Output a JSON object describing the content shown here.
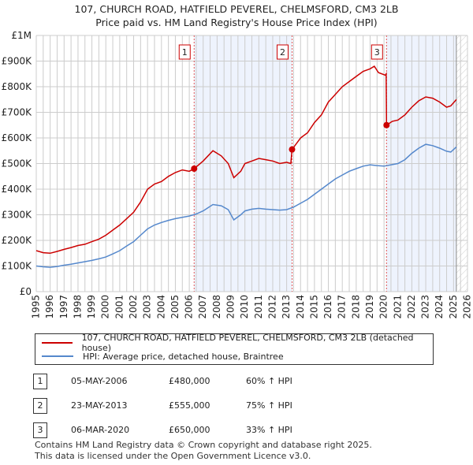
{
  "chart_data": {
    "type": "line",
    "title": "107, CHURCH ROAD, HATFIELD PEVEREL, CHELMSFORD, CM3 2LB",
    "subtitle": "Price paid vs. HM Land Registry's House Price Index (HPI)",
    "xlim": [
      1995,
      2026
    ],
    "ylim": [
      0,
      1000000
    ],
    "x_ticks": [
      "1995",
      "1996",
      "1997",
      "1998",
      "1999",
      "2000",
      "2001",
      "2002",
      "2003",
      "2004",
      "2005",
      "2006",
      "2007",
      "2008",
      "2009",
      "2010",
      "2011",
      "2012",
      "2013",
      "2014",
      "2015",
      "2016",
      "2017",
      "2018",
      "2019",
      "2020",
      "2021",
      "2022",
      "2023",
      "2024",
      "2025",
      "2026"
    ],
    "y_ticks": [
      {
        "v": 0,
        "label": "£0"
      },
      {
        "v": 100000,
        "label": "£100K"
      },
      {
        "v": 200000,
        "label": "£200K"
      },
      {
        "v": 300000,
        "label": "£300K"
      },
      {
        "v": 400000,
        "label": "£400K"
      },
      {
        "v": 500000,
        "label": "£500K"
      },
      {
        "v": 600000,
        "label": "£600K"
      },
      {
        "v": 700000,
        "label": "£700K"
      },
      {
        "v": 800000,
        "label": "£800K"
      },
      {
        "v": 900000,
        "label": "£900K"
      },
      {
        "v": 1000000,
        "label": "£1M"
      }
    ],
    "grid": true,
    "shaded_periods": [
      [
        2006.35,
        2013.39
      ],
      [
        2020.18,
        2025.2
      ]
    ],
    "forecast_hatch_from": 2025.2,
    "series": [
      {
        "name": "107, CHURCH ROAD, HATFIELD PEVEREL, CHELMSFORD, CM3 2LB (detached house)",
        "color": "#cc0000",
        "x": [
          1995,
          1995.5,
          1996,
          1996.5,
          1997,
          1997.5,
          1998,
          1998.5,
          1999,
          1999.5,
          2000,
          2000.5,
          2001,
          2001.5,
          2002,
          2002.5,
          2003,
          2003.5,
          2004,
          2004.5,
          2005,
          2005.5,
          2006,
          2006.35,
          2007,
          2007.7,
          2008.3,
          2008.8,
          2009.2,
          2009.7,
          2010,
          2010.5,
          2011,
          2011.5,
          2012,
          2012.5,
          2013,
          2013.3,
          2013.39,
          2014,
          2014.5,
          2015,
          2015.5,
          2016,
          2016.5,
          2017,
          2017.5,
          2018,
          2018.5,
          2019,
          2019.3,
          2019.6,
          2020.1,
          2020.15,
          2020.18,
          2020.6,
          2021,
          2021.5,
          2022,
          2022.5,
          2023,
          2023.5,
          2024,
          2024.5,
          2024.8,
          2025.2
        ],
        "y": [
          160000,
          152000,
          150000,
          157000,
          165000,
          172000,
          180000,
          185000,
          195000,
          205000,
          220000,
          240000,
          260000,
          285000,
          310000,
          350000,
          400000,
          420000,
          430000,
          450000,
          465000,
          475000,
          470000,
          480000,
          510000,
          550000,
          530000,
          500000,
          445000,
          470000,
          500000,
          510000,
          520000,
          515000,
          510000,
          500000,
          505000,
          500000,
          555000,
          600000,
          620000,
          660000,
          690000,
          740000,
          770000,
          800000,
          820000,
          840000,
          860000,
          870000,
          880000,
          855000,
          845000,
          850000,
          650000,
          665000,
          670000,
          690000,
          720000,
          745000,
          760000,
          755000,
          740000,
          720000,
          725000,
          750000
        ]
      },
      {
        "name": "HPI: Average price, detached house, Braintree",
        "color": "#5588cc",
        "x": [
          1995,
          1995.5,
          1996,
          1996.5,
          1997,
          1997.5,
          1998,
          1998.5,
          1999,
          1999.5,
          2000,
          2000.5,
          2001,
          2001.5,
          2002,
          2002.5,
          2003,
          2003.5,
          2004,
          2004.5,
          2005,
          2005.5,
          2006,
          2006.5,
          2007,
          2007.7,
          2008.3,
          2008.8,
          2009.2,
          2009.7,
          2010,
          2010.5,
          2011,
          2011.5,
          2012,
          2012.5,
          2013,
          2013.5,
          2014,
          2014.5,
          2015,
          2015.5,
          2016,
          2016.5,
          2017,
          2017.5,
          2018,
          2018.5,
          2019,
          2019.5,
          2020,
          2020.5,
          2021,
          2021.5,
          2022,
          2022.5,
          2023,
          2023.5,
          2024,
          2024.5,
          2024.8,
          2025.2
        ],
        "y": [
          100000,
          97000,
          95000,
          98000,
          103000,
          107000,
          112000,
          117000,
          122000,
          128000,
          135000,
          147000,
          160000,
          178000,
          195000,
          220000,
          245000,
          260000,
          270000,
          278000,
          285000,
          290000,
          295000,
          303000,
          315000,
          340000,
          335000,
          320000,
          280000,
          300000,
          315000,
          322000,
          325000,
          322000,
          320000,
          318000,
          320000,
          330000,
          345000,
          360000,
          380000,
          400000,
          420000,
          440000,
          455000,
          470000,
          480000,
          490000,
          495000,
          492000,
          490000,
          495000,
          500000,
          515000,
          540000,
          560000,
          575000,
          570000,
          560000,
          548000,
          545000,
          565000
        ]
      }
    ],
    "markers": [
      {
        "label": "1",
        "x": 2006.35,
        "y": 480000
      },
      {
        "label": "2",
        "x": 2013.39,
        "y": 555000
      },
      {
        "label": "3",
        "x": 2020.18,
        "y": 650000
      }
    ]
  },
  "legend": {
    "items": [
      "107, CHURCH ROAD, HATFIELD PEVEREL, CHELMSFORD, CM3 2LB (detached house)",
      "HPI: Average price, detached house, Braintree"
    ]
  },
  "transactions": [
    {
      "num": "1",
      "date": "05-MAY-2006",
      "price": "£480,000",
      "hpi": "60% ↑ HPI"
    },
    {
      "num": "2",
      "date": "23-MAY-2013",
      "price": "£555,000",
      "hpi": "75% ↑ HPI"
    },
    {
      "num": "3",
      "date": "06-MAR-2020",
      "price": "£650,000",
      "hpi": "33% ↑ HPI"
    }
  ],
  "footer": [
    "Contains HM Land Registry data © Crown copyright and database right 2025.",
    "This data is licensed under the Open Government Licence v3.0."
  ]
}
